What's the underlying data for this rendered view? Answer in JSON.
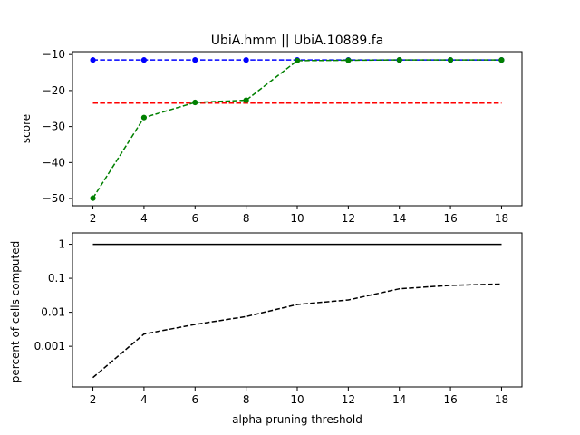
{
  "title": "UbiA.hmm || UbiA.10889.fa",
  "colors": {
    "blue": "#0000ff",
    "red": "#ff0000",
    "green": "#008000",
    "black": "#000000"
  },
  "chart_data": [
    {
      "type": "line",
      "title": "UbiA.hmm || UbiA.10889.fa",
      "xlabel": "",
      "ylabel": "score",
      "x": [
        2,
        4,
        6,
        8,
        10,
        12,
        14,
        16,
        18
      ],
      "xticks": [
        "2",
        "4",
        "6",
        "8",
        "10",
        "12",
        "14",
        "16",
        "18"
      ],
      "yticks": [
        "−50",
        "−40",
        "−30",
        "−20",
        "−10"
      ],
      "ytick_values": [
        -50,
        -40,
        -30,
        -20,
        -10
      ],
      "xlim": [
        1.2,
        18.8
      ],
      "ylim": [
        -52,
        -9.2
      ],
      "grid": false,
      "series": [
        {
          "color": "blue",
          "style": "dashed",
          "markers": true,
          "values": [
            -11.5,
            -11.5,
            -11.5,
            -11.5,
            -11.5,
            -11.5,
            -11.5,
            -11.5,
            -11.5
          ]
        },
        {
          "color": "red",
          "style": "dashed",
          "markers": false,
          "values": [
            -23.5,
            -23.5,
            -23.5,
            -23.5,
            -23.5,
            -23.5,
            -23.5,
            -23.5,
            -23.5
          ]
        },
        {
          "color": "green",
          "style": "dashed",
          "markers": true,
          "values": [
            -49.9,
            -27.5,
            -23.3,
            -22.7,
            -11.7,
            -11.6,
            -11.5,
            -11.5,
            -11.5
          ]
        }
      ]
    },
    {
      "type": "line",
      "title": "",
      "xlabel": "alpha pruning threshold",
      "ylabel": "percent of cells computed",
      "yscale": "log",
      "x": [
        2,
        4,
        6,
        8,
        10,
        12,
        14,
        16,
        18
      ],
      "xticks": [
        "2",
        "4",
        "6",
        "8",
        "10",
        "12",
        "14",
        "16",
        "18"
      ],
      "yticks": [
        "0.001",
        "0.01",
        "0.1",
        "1"
      ],
      "ytick_values": [
        0.001,
        0.01,
        0.1,
        1
      ],
      "xlim": [
        1.2,
        18.8
      ],
      "ylim": [
        6.38e-05,
        2.16
      ],
      "grid": false,
      "series": [
        {
          "color": "black",
          "style": "solid",
          "markers": false,
          "values": [
            1,
            1,
            1,
            1,
            1,
            1,
            1,
            1,
            1
          ]
        },
        {
          "color": "black",
          "style": "dashed",
          "markers": false,
          "values": [
            0.00012,
            0.0023,
            0.0044,
            0.0075,
            0.017,
            0.023,
            0.049,
            0.062,
            0.068
          ]
        }
      ]
    }
  ]
}
